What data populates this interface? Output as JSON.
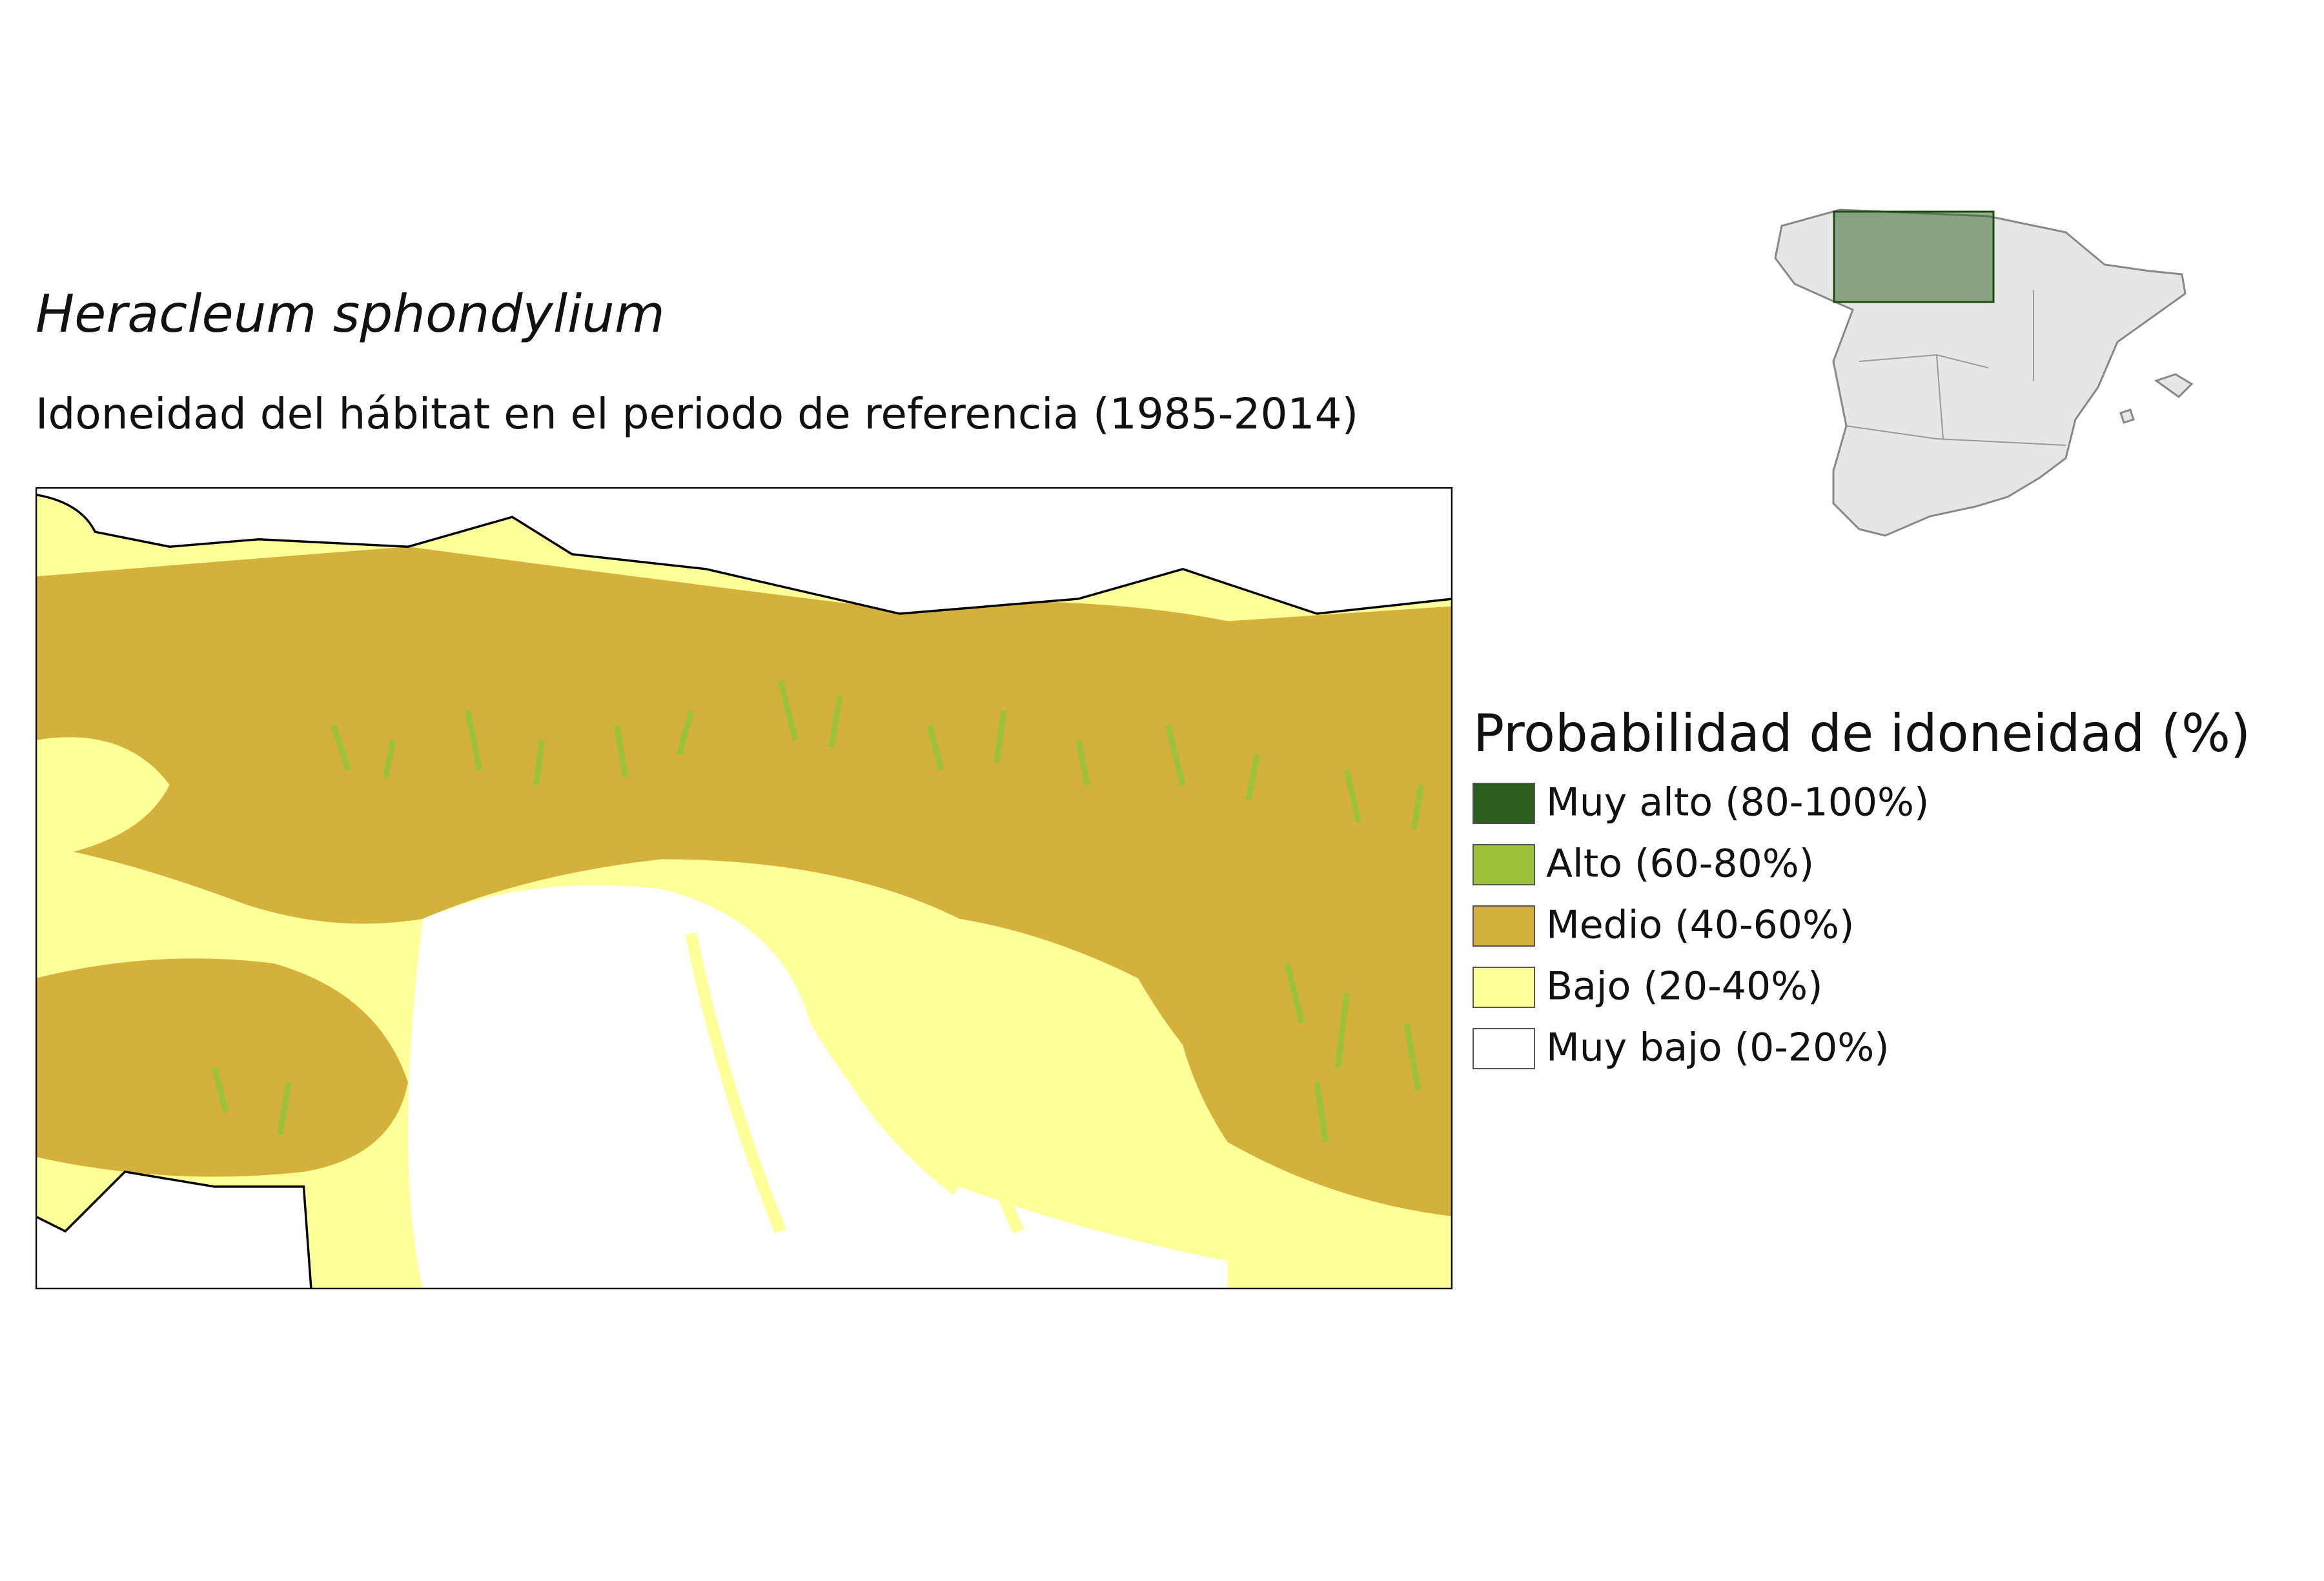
{
  "title": "Heracleum sphondylium",
  "subtitle": "Idoneidad del hábitat en el periodo de referencia (1985-2014)",
  "legend": {
    "title": "Probabilidad de idoneidad (%)",
    "items": [
      {
        "label": "Muy alto (80-100%)",
        "color": "#2b5e1e"
      },
      {
        "label": "Alto (60-80%)",
        "color": "#9dc13b"
      },
      {
        "label": "Medio (40-60%)",
        "color": "#d4b13a"
      },
      {
        "label": "Bajo (20-40%)",
        "color": "#ffff99"
      },
      {
        "label": "Muy bajo (0-20%)",
        "color": "#ffffff"
      }
    ]
  }
}
